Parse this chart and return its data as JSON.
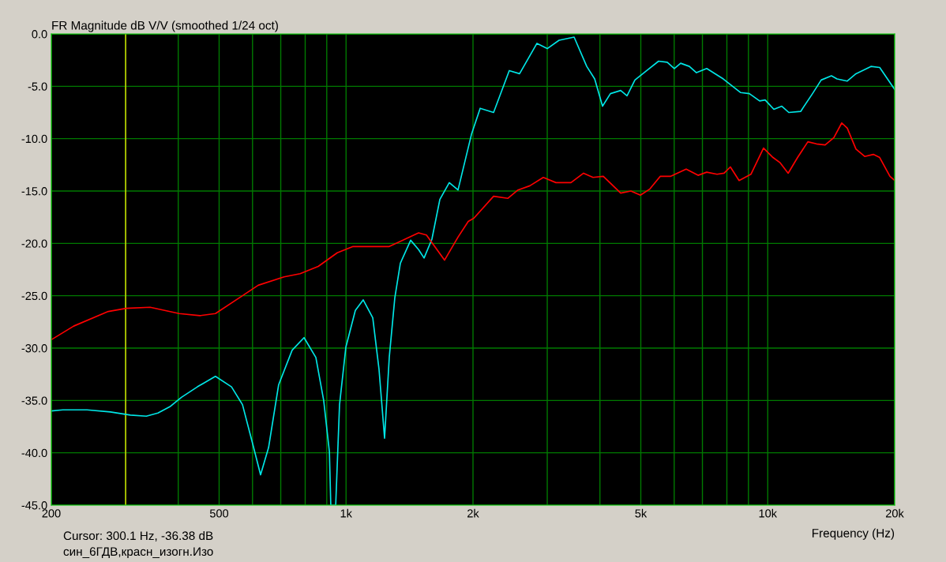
{
  "chart_data": {
    "type": "line",
    "title": "FR Magnitude dB V/V (smoothed 1/24 oct)",
    "xlabel": "Frequency (Hz)",
    "annotations": [
      "Cursor: 300.1 Hz, -36.38 dB",
      "син_6ГДВ,красн_изогн.Изо"
    ],
    "log": "x",
    "grid": true,
    "marker": "none",
    "line_style": "solid",
    "xlim": [
      200,
      20000
    ],
    "xticks": [
      {
        "value": 200,
        "label": "200"
      },
      {
        "value": 300,
        "label": null
      },
      {
        "value": 400,
        "label": null
      },
      {
        "value": 500,
        "label": "500"
      },
      {
        "value": 600,
        "label": null
      },
      {
        "value": 700,
        "label": null
      },
      {
        "value": 800,
        "label": null
      },
      {
        "value": 900,
        "label": null
      },
      {
        "value": 1000,
        "label": "1k"
      },
      {
        "value": 2000,
        "label": "2k"
      },
      {
        "value": 3000,
        "label": null
      },
      {
        "value": 4000,
        "label": null
      },
      {
        "value": 5000,
        "label": "5k"
      },
      {
        "value": 6000,
        "label": null
      },
      {
        "value": 7000,
        "label": null
      },
      {
        "value": 8000,
        "label": null
      },
      {
        "value": 9000,
        "label": null
      },
      {
        "value": 10000,
        "label": "10k"
      },
      {
        "value": 20000,
        "label": "20k"
      }
    ],
    "ylim": [
      -45,
      0
    ],
    "yticks": [
      {
        "value": 0,
        "label": "0.0"
      },
      {
        "value": -5,
        "label": "-5.0"
      },
      {
        "value": -10,
        "label": "-10.0"
      },
      {
        "value": -15,
        "label": "-15.0"
      },
      {
        "value": -20,
        "label": "-20.0"
      },
      {
        "value": -25,
        "label": "-25.0"
      },
      {
        "value": -30,
        "label": "-30.0"
      },
      {
        "value": -35,
        "label": "-35.0"
      },
      {
        "value": -40,
        "label": "-40.0"
      },
      {
        "value": -45,
        "label": "-45.0"
      }
    ],
    "ref_lines": [
      {
        "axis": "x",
        "value": 300.1,
        "color": "#e6e600"
      }
    ],
    "series": [
      {
        "color": "#00e6e6",
        "x": [
          200,
          213,
          243,
          276,
          308,
          336,
          358,
          382,
          407,
          444,
          490,
          535,
          568,
          601,
          627,
          655,
          692,
          745,
          795,
          848,
          885,
          913,
          920,
          945,
          965,
          999,
          1052,
          1098,
          1157,
          1197,
          1234,
          1266,
          1305,
          1345,
          1423,
          1486,
          1531,
          1598,
          1669,
          1757,
          1843,
          1983,
          2080,
          2238,
          2438,
          2579,
          2836,
          3000,
          3200,
          3474,
          3722,
          3887,
          4057,
          4236,
          4480,
          4638,
          4842,
          5165,
          5510,
          5777,
          6004,
          6216,
          6518,
          6776,
          7166,
          7846,
          8627,
          9046,
          9568,
          9860,
          10340,
          10800,
          11220,
          11970,
          12770,
          13390,
          14160,
          14600,
          15440,
          16190,
          17570,
          18430,
          20000
        ],
        "values": [
          -36.0,
          -35.9,
          -35.9,
          -36.1,
          -36.4,
          -36.5,
          -36.2,
          -35.6,
          -34.7,
          -33.7,
          -32.7,
          -33.7,
          -35.4,
          -39.2,
          -42.1,
          -39.5,
          -33.5,
          -30.2,
          -29.0,
          -30.9,
          -35.0,
          -39.9,
          -45.0,
          -45.0,
          -35.4,
          -29.9,
          -26.4,
          -25.4,
          -27.1,
          -32.0,
          -38.6,
          -30.9,
          -25.2,
          -21.9,
          -19.7,
          -20.6,
          -21.4,
          -19.6,
          -15.8,
          -14.2,
          -14.9,
          -9.6,
          -7.1,
          -7.5,
          -3.5,
          -3.8,
          -0.9,
          -1.4,
          -0.6,
          -0.3,
          -3.1,
          -4.3,
          -6.9,
          -5.7,
          -5.4,
          -5.9,
          -4.4,
          -3.5,
          -2.6,
          -2.7,
          -3.3,
          -2.8,
          -3.1,
          -3.7,
          -3.3,
          -4.3,
          -5.6,
          -5.7,
          -6.4,
          -6.3,
          -7.2,
          -6.9,
          -7.5,
          -7.4,
          -5.7,
          -4.4,
          -4.0,
          -4.3,
          -4.5,
          -3.8,
          -3.1,
          -3.2,
          -5.3
        ]
      },
      {
        "color": "#ff0000",
        "x": [
          200,
          226,
          273,
          301,
          343,
          402,
          450,
          490,
          568,
          619,
          713,
          778,
          859,
          953,
          1039,
          1266,
          1380,
          1486,
          1551,
          1712,
          1843,
          1949,
          2009,
          2238,
          2418,
          2557,
          2728,
          2936,
          3146,
          3414,
          3658,
          3852,
          4074,
          4480,
          4737,
          4989,
          5256,
          5558,
          5877,
          6406,
          6835,
          7166,
          7582,
          7878,
          8155,
          8552,
          9122,
          9773,
          10290,
          10700,
          11180,
          11770,
          12450,
          13050,
          13680,
          14350,
          14980,
          15440,
          16190,
          16980,
          17800,
          18430,
          19490,
          20000
        ],
        "values": [
          -29.2,
          -27.9,
          -26.5,
          -26.2,
          -26.1,
          -26.7,
          -26.9,
          -26.7,
          -25.0,
          -24.0,
          -23.2,
          -22.9,
          -22.2,
          -20.9,
          -20.3,
          -20.3,
          -19.6,
          -19.0,
          -19.2,
          -21.6,
          -19.4,
          -17.9,
          -17.6,
          -15.5,
          -15.7,
          -14.9,
          -14.5,
          -13.7,
          -14.2,
          -14.2,
          -13.3,
          -13.7,
          -13.6,
          -15.2,
          -15.0,
          -15.4,
          -14.8,
          -13.6,
          -13.6,
          -12.9,
          -13.5,
          -13.2,
          -13.4,
          -13.3,
          -12.7,
          -14.0,
          -13.4,
          -10.9,
          -11.8,
          -12.3,
          -13.3,
          -11.8,
          -10.3,
          -10.5,
          -10.6,
          -9.9,
          -8.5,
          -9.0,
          -11.0,
          -11.7,
          -11.5,
          -11.8,
          -13.6,
          -14.0
        ]
      }
    ]
  }
}
